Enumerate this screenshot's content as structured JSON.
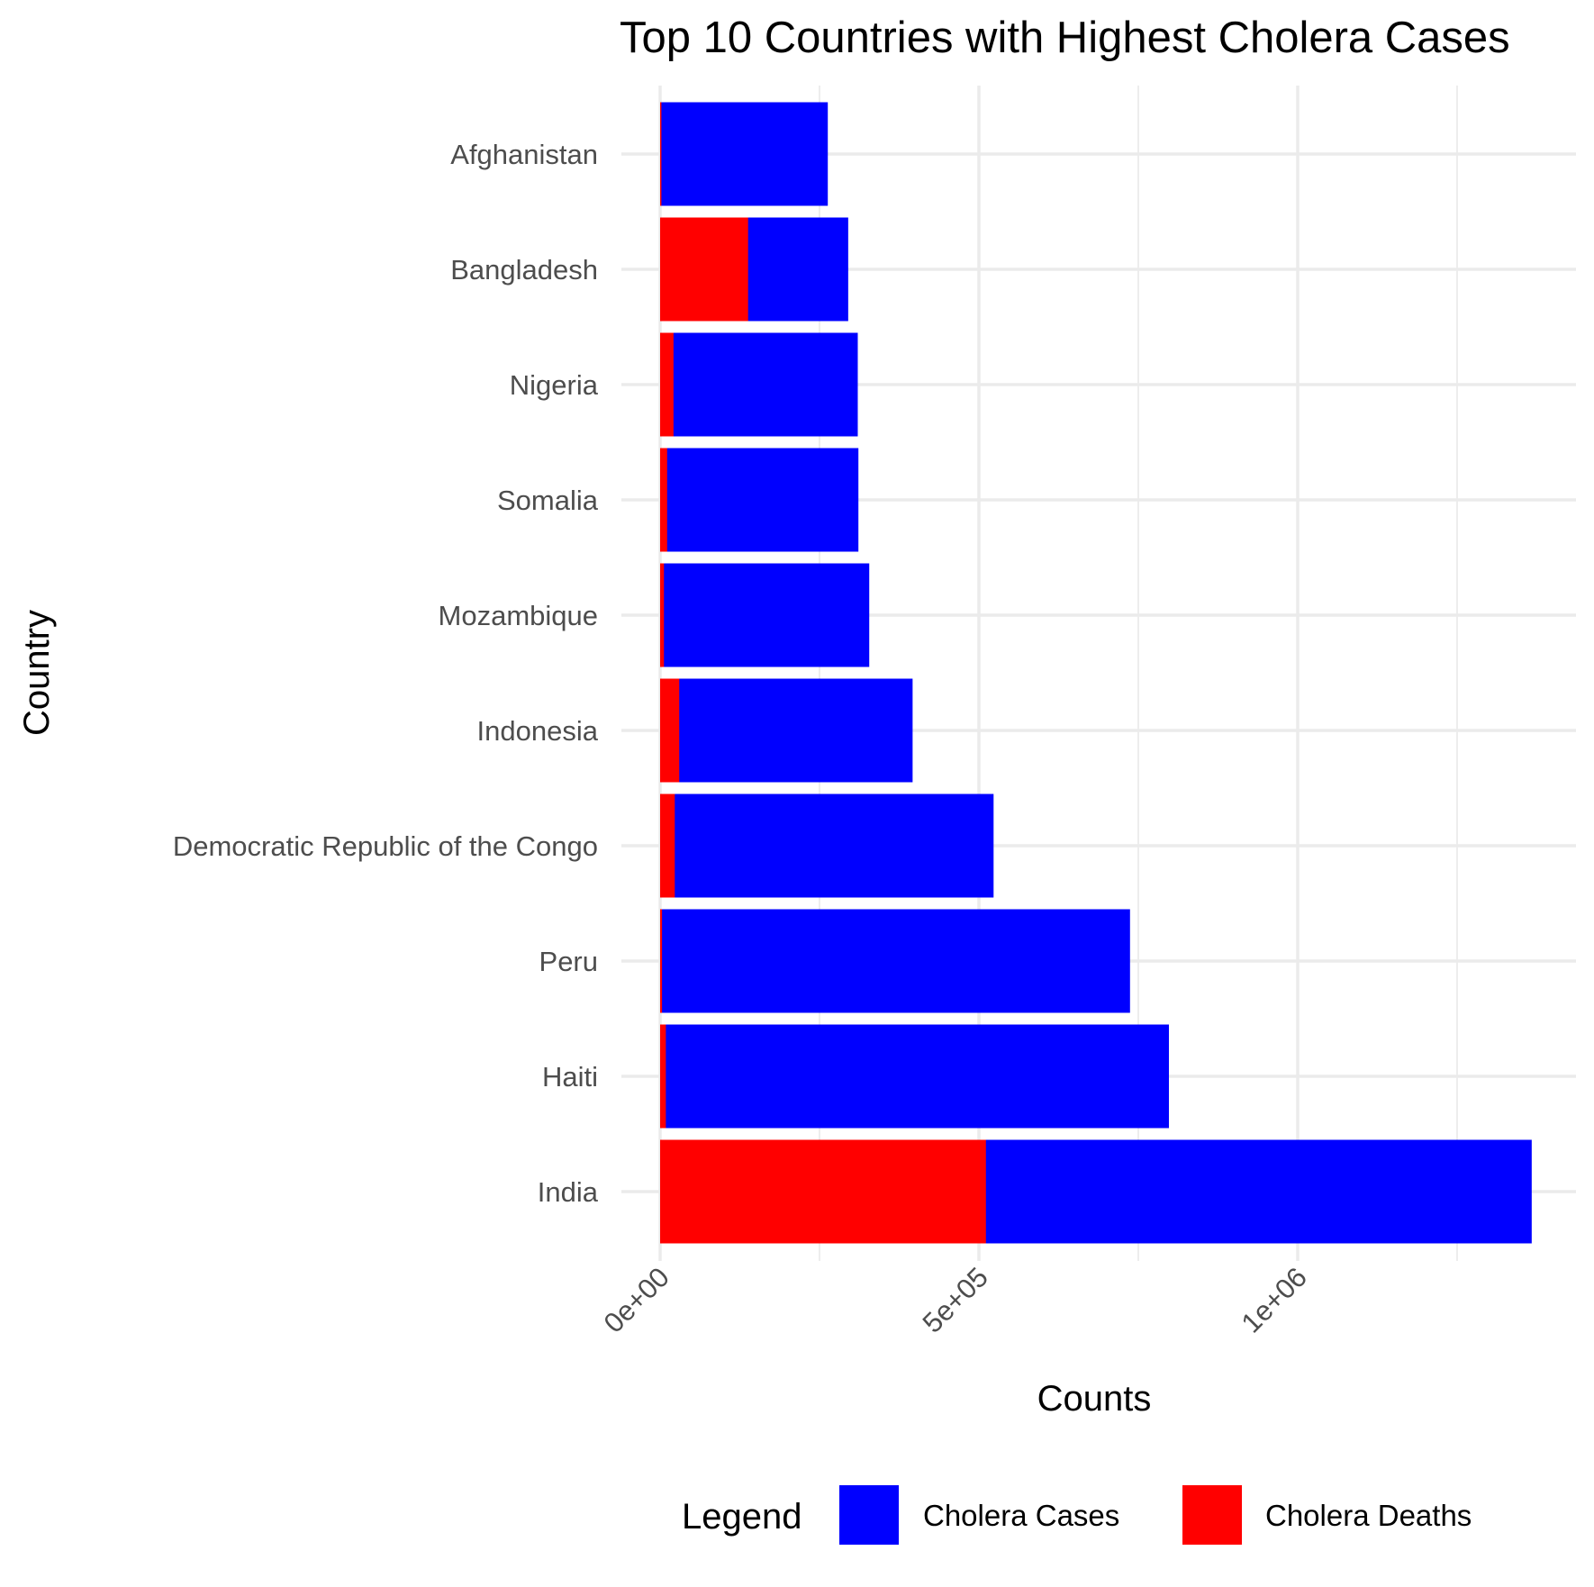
{
  "chart_data": {
    "type": "bar",
    "orientation": "horizontal",
    "title": "Top 10 Countries with Highest Cholera Cases",
    "xlabel": "Counts",
    "ylabel": "Country",
    "categories": [
      "Afghanistan",
      "Bangladesh",
      "Nigeria",
      "Somalia",
      "Mozambique",
      "Indonesia",
      "Democratic Republic of the Congo",
      "Peru",
      "Haiti",
      "India"
    ],
    "series": [
      {
        "name": "Cholera Cases",
        "color": "#0000ff",
        "values": [
          263000,
          295000,
          310000,
          311000,
          328000,
          396000,
          523000,
          737000,
          798000,
          1367000
        ]
      },
      {
        "name": "Cholera Deaths",
        "color": "#ff0000",
        "values": [
          2000,
          138000,
          21000,
          11000,
          6000,
          30000,
          23000,
          3000,
          9000,
          511000
        ]
      }
    ],
    "overlay": true,
    "xticks": [
      {
        "value": 0,
        "label": "0e+00"
      },
      {
        "value": 500000,
        "label": "5e+05"
      },
      {
        "value": 1000000,
        "label": "1e+06"
      }
    ],
    "xlim": [
      0,
      1430000
    ],
    "grid": true,
    "legend": {
      "title": "Legend",
      "position": "bottom",
      "items": [
        {
          "label": "Cholera Cases",
          "color": "#0000ff"
        },
        {
          "label": "Cholera Deaths",
          "color": "#ff0000"
        }
      ]
    }
  }
}
